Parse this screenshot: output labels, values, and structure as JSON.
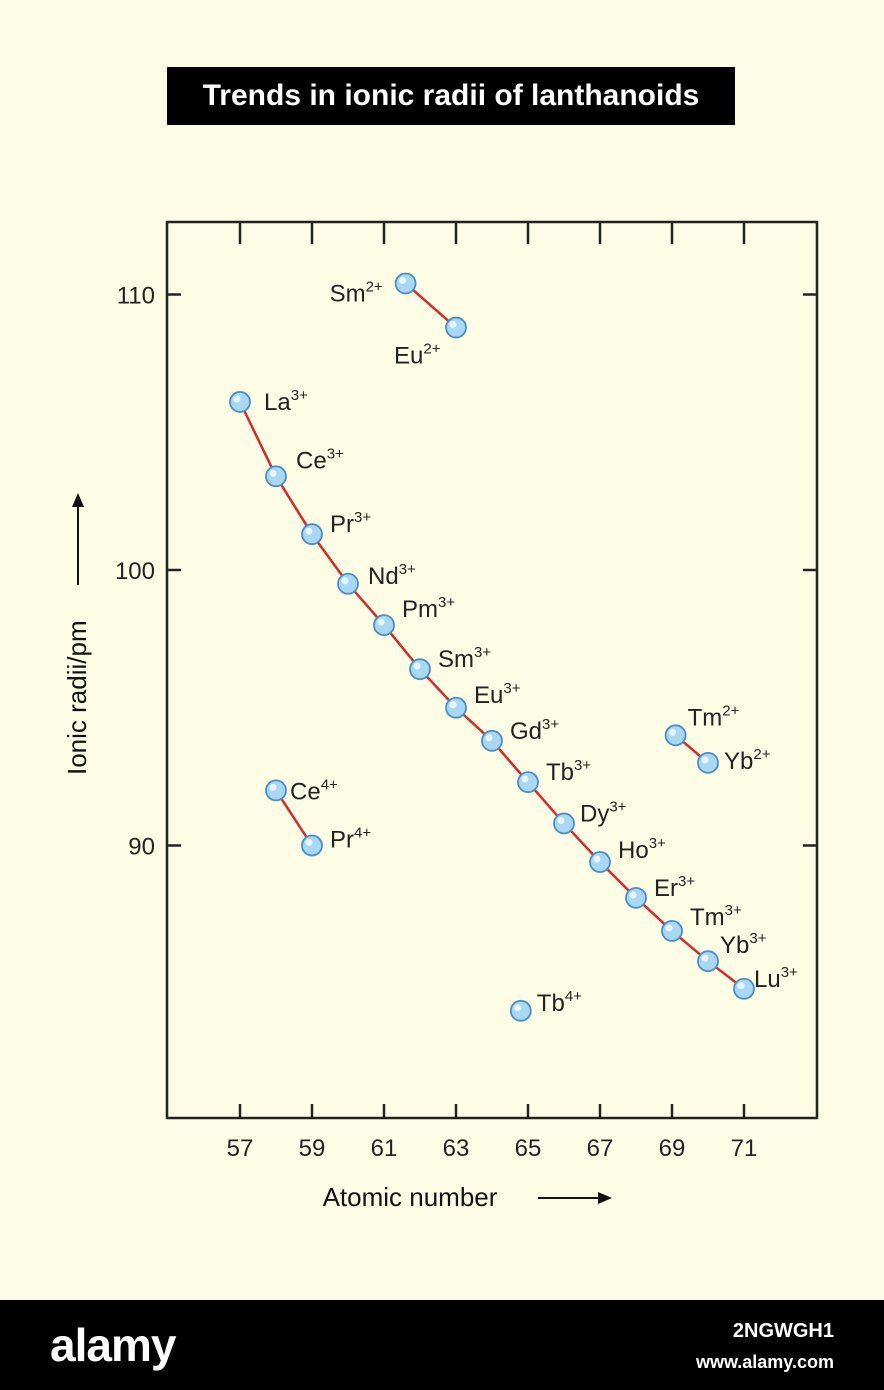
{
  "chart_data": {
    "type": "scatter",
    "title": "Trends in ionic radii of lanthanoids",
    "xlabel": "Atomic number",
    "ylabel": "Ionic radii/pm",
    "xlim": [
      55,
      73
    ],
    "ylim": [
      80,
      112.6
    ],
    "x_ticks": [
      57,
      59,
      61,
      63,
      65,
      67,
      69,
      71
    ],
    "x_tick_labels": [
      "57",
      "59",
      "61",
      "63",
      "65",
      "67",
      "69",
      "71"
    ],
    "y_ticks": [
      90,
      100,
      110
    ],
    "y_tick_labels": [
      "90",
      "100",
      "110"
    ],
    "grid": false,
    "line_color": "#d62a2a",
    "marker_color": "#a9d8f5",
    "series": [
      {
        "connected": true,
        "points": [
          {
            "x": 57,
            "y": 106.1,
            "label": "La",
            "charge": "3+"
          },
          {
            "x": 58,
            "y": 103.4,
            "label": "Ce",
            "charge": "3+"
          },
          {
            "x": 59,
            "y": 101.3,
            "label": "Pr",
            "charge": "3+"
          },
          {
            "x": 60,
            "y": 99.5,
            "label": "Nd",
            "charge": "3+"
          },
          {
            "x": 61,
            "y": 98.0,
            "label": "Pm",
            "charge": "3+"
          },
          {
            "x": 62,
            "y": 96.4,
            "label": "Sm",
            "charge": "3+"
          },
          {
            "x": 63,
            "y": 95.0,
            "label": "Eu",
            "charge": "3+"
          },
          {
            "x": 64,
            "y": 93.8,
            "label": "Gd",
            "charge": "3+"
          },
          {
            "x": 65,
            "y": 92.3,
            "label": "Tb",
            "charge": "3+"
          },
          {
            "x": 66,
            "y": 90.8,
            "label": "Dy",
            "charge": "3+"
          },
          {
            "x": 67,
            "y": 89.4,
            "label": "Ho",
            "charge": "3+"
          },
          {
            "x": 68,
            "y": 88.1,
            "label": "Er",
            "charge": "3+"
          },
          {
            "x": 69,
            "y": 86.9,
            "label": "Tm",
            "charge": "3+"
          },
          {
            "x": 70,
            "y": 85.8,
            "label": "Yb",
            "charge": "3+"
          },
          {
            "x": 71,
            "y": 84.8,
            "label": "Lu",
            "charge": "3+"
          }
        ]
      },
      {
        "connected": true,
        "points": [
          {
            "x": 61.6,
            "y": 110.4,
            "label": "Sm",
            "charge": "2+"
          },
          {
            "x": 63,
            "y": 108.8,
            "label": "Eu",
            "charge": "2+"
          }
        ]
      },
      {
        "connected": true,
        "points": [
          {
            "x": 58,
            "y": 92.0,
            "label": "Ce",
            "charge": "4+"
          },
          {
            "x": 59,
            "y": 90.0,
            "label": "Pr",
            "charge": "4+"
          }
        ]
      },
      {
        "connected": true,
        "points": [
          {
            "x": 69.1,
            "y": 94.0,
            "label": "Tm",
            "charge": "2+"
          },
          {
            "x": 70,
            "y": 93.0,
            "label": "Yb",
            "charge": "2+"
          }
        ]
      },
      {
        "connected": false,
        "points": [
          {
            "x": 64.8,
            "y": 84.0,
            "label": "Tb",
            "charge": "4+"
          }
        ]
      }
    ]
  },
  "footer": {
    "brand": "alamy",
    "image_id": "2NGWGH1",
    "site": "www.alamy.com"
  }
}
